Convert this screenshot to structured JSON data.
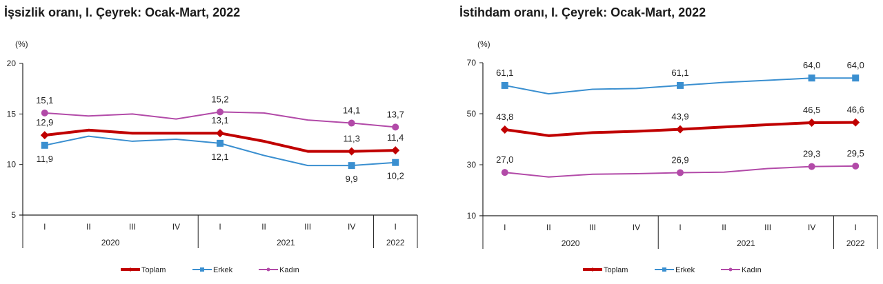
{
  "chart_data": [
    {
      "type": "line",
      "title": "İşsizlik oranı, I. Çeyrek: Ocak-Mart, 2022",
      "ylabel": "(%)",
      "xlabel": "",
      "ylim": [
        5,
        20
      ],
      "yticks": [
        "20",
        "15",
        "10",
        "5"
      ],
      "ytick_values": [
        20,
        15,
        10,
        5
      ],
      "grid": false,
      "legend": "bottom-center",
      "categories": [
        "I",
        "II",
        "III",
        "IV",
        "I",
        "II",
        "III",
        "IV",
        "I"
      ],
      "year_groups": [
        {
          "label": "2020",
          "count": 4
        },
        {
          "label": "2021",
          "count": 4
        },
        {
          "label": "2022",
          "count": 1
        }
      ],
      "series": [
        {
          "name": "Toplam",
          "color": "#c00000",
          "marker": "diamond",
          "width": "thick",
          "values": [
            12.9,
            13.4,
            13.1,
            13.1,
            13.1,
            12.3,
            11.3,
            11.3,
            11.4
          ],
          "labels": [
            "12,9",
            "",
            "",
            "",
            "13,1",
            "",
            "",
            "11,3",
            "11,4"
          ],
          "label_pos": "above"
        },
        {
          "name": "Erkek",
          "color": "#3a8fd0",
          "marker": "square",
          "width": "thin",
          "values": [
            11.9,
            12.8,
            12.3,
            12.5,
            12.1,
            10.9,
            9.9,
            9.9,
            10.2
          ],
          "labels": [
            "11,9",
            "",
            "",
            "",
            "12,1",
            "",
            "",
            "9,9",
            "10,2"
          ],
          "label_pos": "below"
        },
        {
          "name": "Kadın",
          "color": "#b24aa8",
          "marker": "circle",
          "width": "thin",
          "values": [
            15.1,
            14.8,
            15.0,
            14.5,
            15.2,
            15.1,
            14.4,
            14.1,
            13.7
          ],
          "labels": [
            "15,1",
            "",
            "",
            "",
            "15,2",
            "",
            "",
            "14,1",
            "13,7"
          ],
          "label_pos": "above"
        }
      ]
    },
    {
      "type": "line",
      "title": "İstihdam oranı, I. Çeyrek: Ocak-Mart, 2022",
      "ylabel": "(%)",
      "xlabel": "",
      "ylim": [
        10,
        70
      ],
      "yticks": [
        "70",
        "50",
        "30",
        "10"
      ],
      "ytick_values": [
        70,
        50,
        30,
        10
      ],
      "grid": false,
      "legend": "bottom-center",
      "categories": [
        "I",
        "II",
        "III",
        "IV",
        "I",
        "II",
        "III",
        "IV",
        "I"
      ],
      "year_groups": [
        {
          "label": "2020",
          "count": 4
        },
        {
          "label": "2021",
          "count": 4
        },
        {
          "label": "2022",
          "count": 1
        }
      ],
      "series": [
        {
          "name": "Toplam",
          "color": "#c00000",
          "marker": "diamond",
          "width": "thick",
          "values": [
            43.8,
            41.4,
            42.6,
            43.1,
            43.9,
            44.8,
            45.7,
            46.5,
            46.6
          ],
          "labels": [
            "43,8",
            "",
            "",
            "",
            "43,9",
            "",
            "",
            "46,5",
            "46,6"
          ],
          "label_pos": "above"
        },
        {
          "name": "Erkek",
          "color": "#3a8fd0",
          "marker": "square",
          "width": "thin",
          "values": [
            61.1,
            57.8,
            59.6,
            59.9,
            61.1,
            62.3,
            63.1,
            64.0,
            64.0
          ],
          "labels": [
            "61,1",
            "",
            "",
            "",
            "61,1",
            "",
            "",
            "64,0",
            "64,0"
          ],
          "label_pos": "above"
        },
        {
          "name": "Kadın",
          "color": "#b24aa8",
          "marker": "circle",
          "width": "thin",
          "values": [
            27.0,
            25.2,
            26.3,
            26.5,
            26.9,
            27.1,
            28.5,
            29.3,
            29.5
          ],
          "labels": [
            "27,0",
            "",
            "",
            "",
            "26,9",
            "",
            "",
            "29,3",
            "29,5"
          ],
          "label_pos": "above"
        }
      ]
    }
  ]
}
